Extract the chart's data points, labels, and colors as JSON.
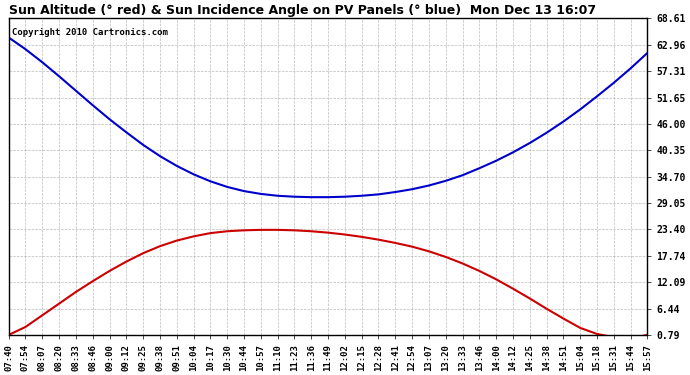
{
  "title": "Sun Altitude (° red) & Sun Incidence Angle on PV Panels (° blue)  Mon Dec 13 16:07",
  "copyright": "Copyright 2010 Cartronics.com",
  "background_color": "#ffffff",
  "plot_bg_color": "#ffffff",
  "grid_color": "#aaaaaa",
  "yticks": [
    0.79,
    6.44,
    12.09,
    17.74,
    23.4,
    29.05,
    34.7,
    40.35,
    46.0,
    51.65,
    57.31,
    62.96,
    68.61
  ],
  "ymin": 0.79,
  "ymax": 68.61,
  "xtick_labels": [
    "07:40",
    "07:54",
    "08:07",
    "08:20",
    "08:33",
    "08:46",
    "09:00",
    "09:12",
    "09:25",
    "09:38",
    "09:51",
    "10:04",
    "10:17",
    "10:30",
    "10:44",
    "10:57",
    "11:10",
    "11:23",
    "11:36",
    "11:49",
    "12:02",
    "12:15",
    "12:28",
    "12:41",
    "12:54",
    "13:07",
    "13:20",
    "13:33",
    "13:46",
    "14:00",
    "14:12",
    "14:25",
    "14:38",
    "14:51",
    "15:04",
    "15:18",
    "15:31",
    "15:44",
    "15:57"
  ],
  "red_data": [
    0.79,
    2.5,
    5.0,
    7.5,
    10.0,
    12.3,
    14.5,
    16.5,
    18.3,
    19.8,
    21.0,
    21.9,
    22.6,
    23.0,
    23.2,
    23.3,
    23.3,
    23.2,
    23.0,
    22.7,
    22.3,
    21.8,
    21.2,
    20.5,
    19.7,
    18.7,
    17.5,
    16.1,
    14.5,
    12.7,
    10.7,
    8.6,
    6.4,
    4.3,
    2.3,
    1.0,
    0.3,
    0.1,
    0.79
  ],
  "blue_data": [
    64.5,
    62.0,
    59.2,
    56.2,
    53.1,
    50.0,
    47.0,
    44.2,
    41.5,
    39.1,
    37.0,
    35.2,
    33.7,
    32.5,
    31.6,
    31.0,
    30.6,
    30.4,
    30.3,
    30.3,
    30.4,
    30.6,
    30.9,
    31.4,
    32.0,
    32.8,
    33.8,
    35.0,
    36.5,
    38.1,
    39.9,
    41.9,
    44.1,
    46.5,
    49.1,
    51.9,
    54.8,
    57.9,
    61.2
  ],
  "red_color": "#cc0000",
  "blue_color": "#0000cc",
  "line_width": 1.5,
  "title_fontsize": 9,
  "tick_fontsize": 7,
  "xtick_fontsize": 6.5
}
